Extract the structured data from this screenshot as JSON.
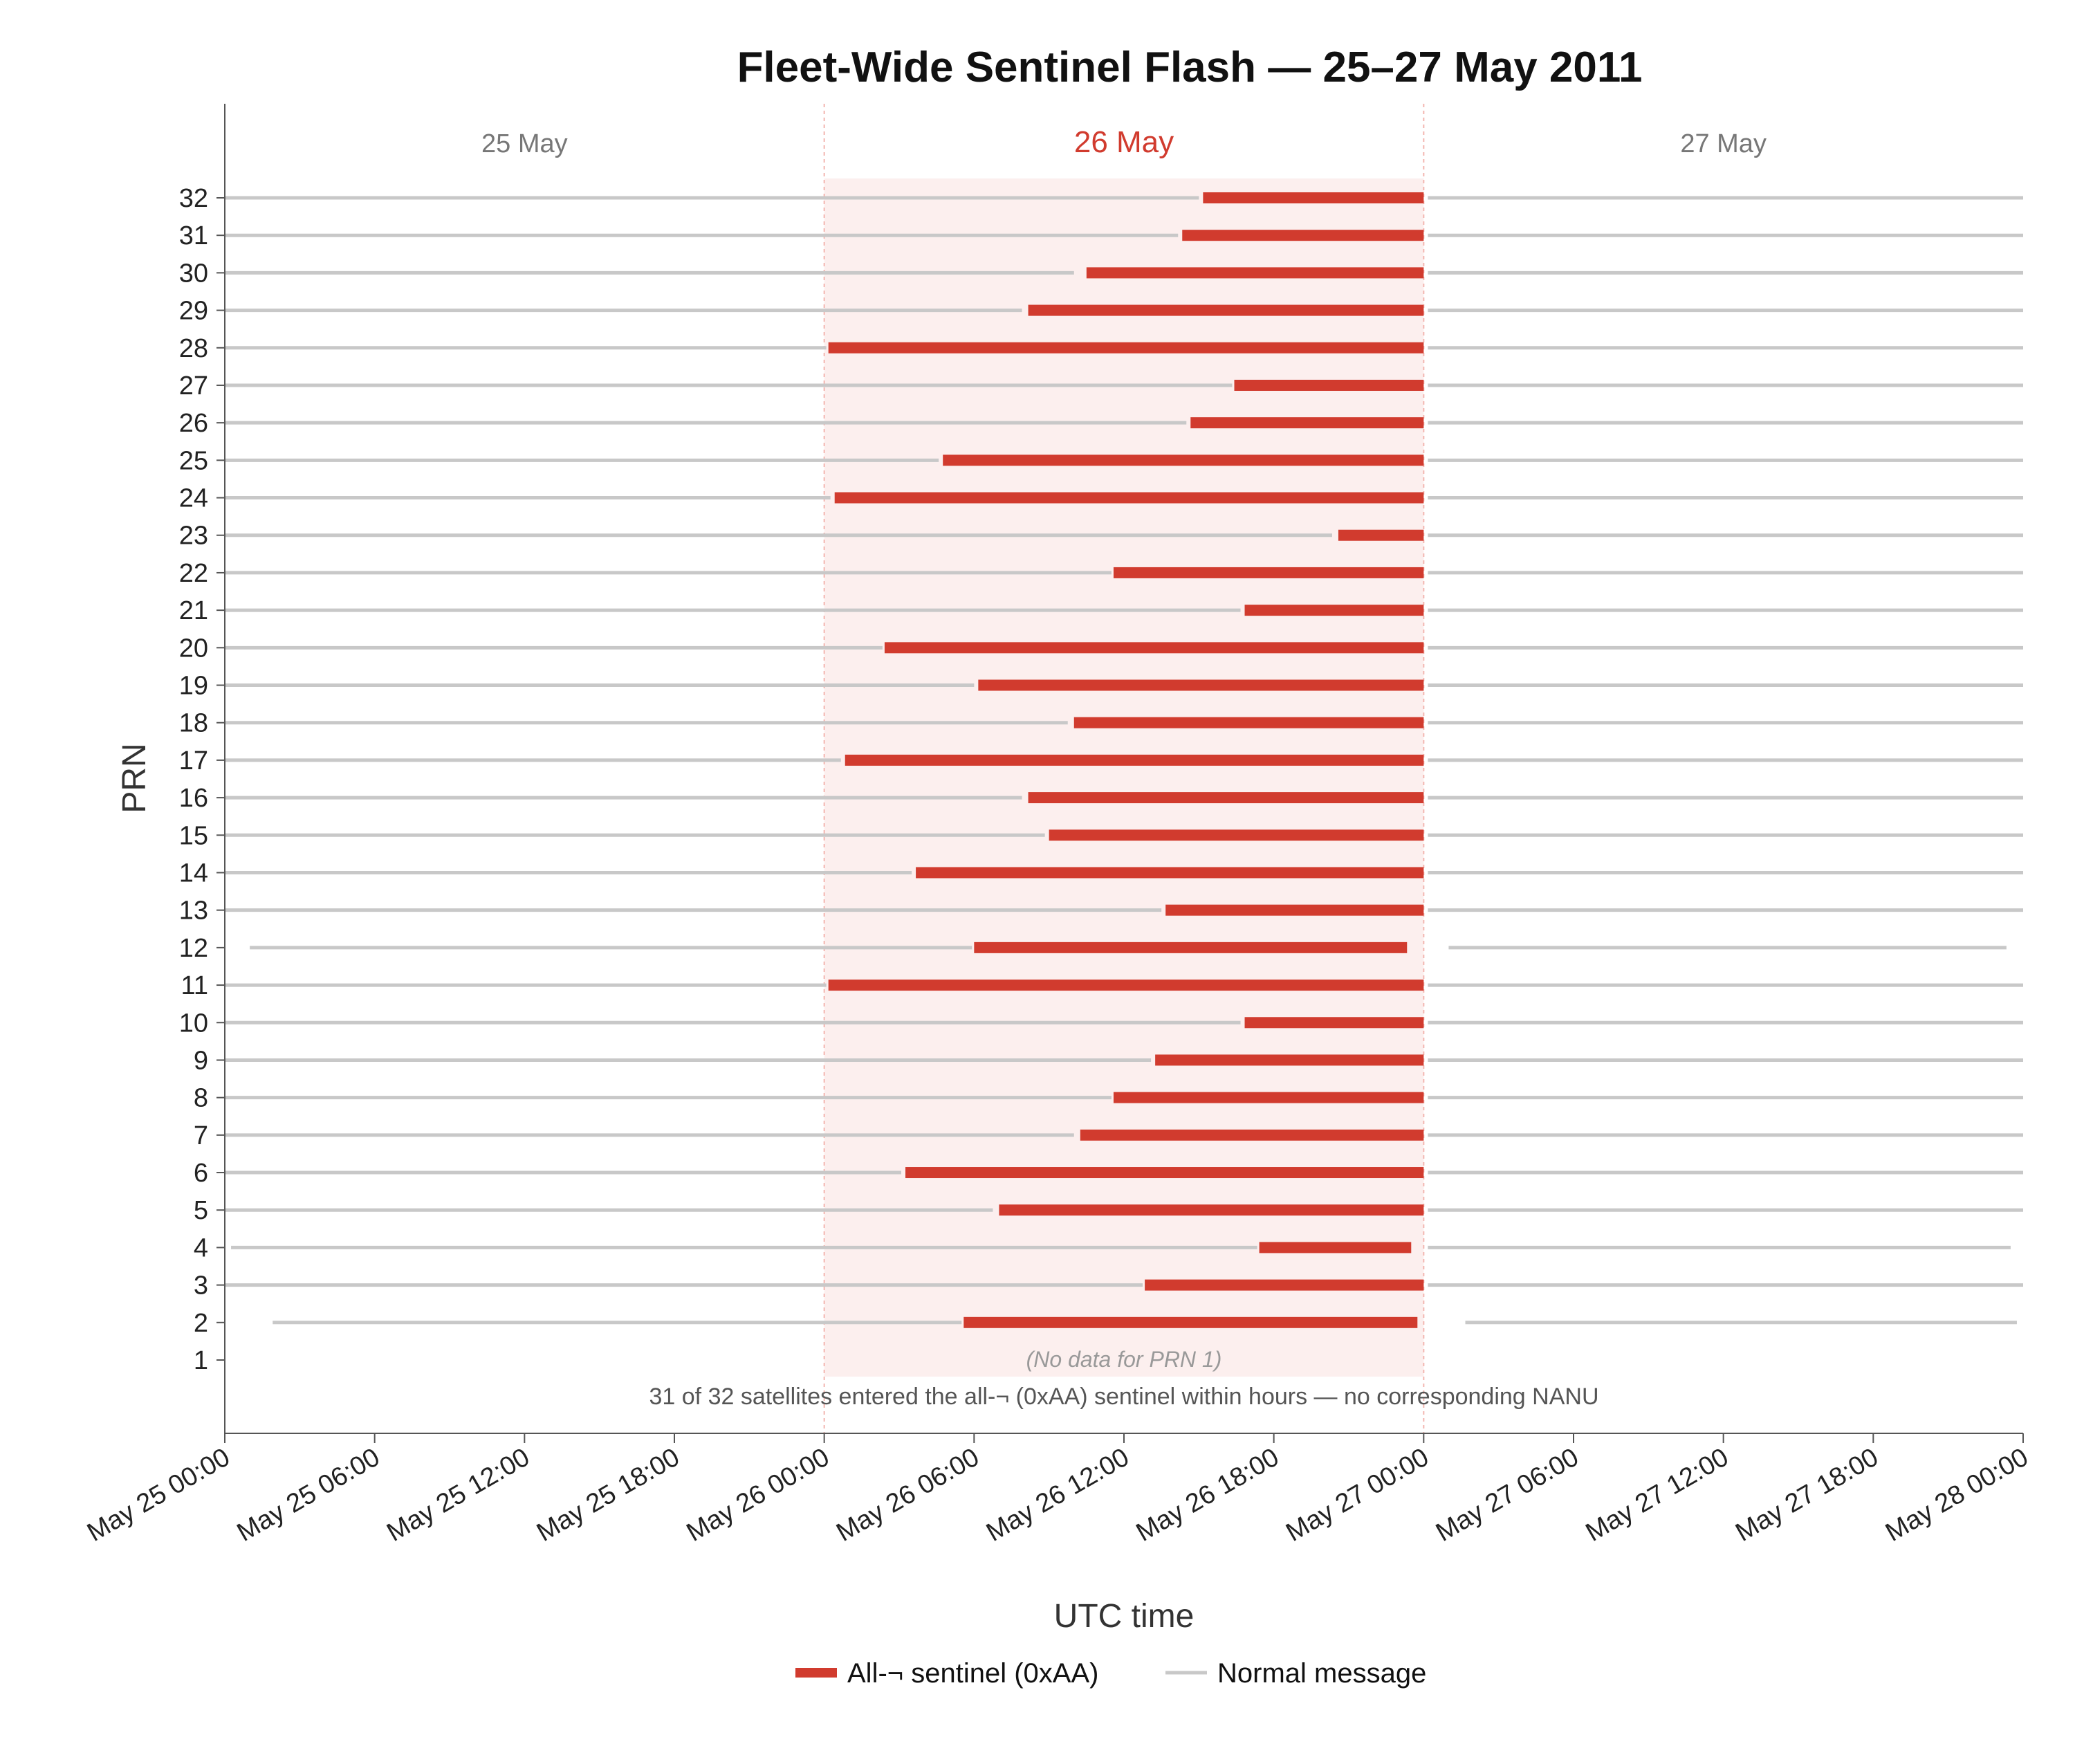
{
  "chart_data": {
    "type": "gantt",
    "title": "Fleet-Wide Sentinel Flash — 25–27 May 2011",
    "xlabel": "UTC time",
    "ylabel": "PRN",
    "x_range": [
      "2011-05-25 00:00",
      "2011-05-28 00:00"
    ],
    "y_range": [
      1,
      32
    ],
    "x_ticks": [
      "May 25 00:00",
      "May 25 06:00",
      "May 25 12:00",
      "May 25 18:00",
      "May 26 00:00",
      "May 26 06:00",
      "May 26 12:00",
      "May 26 18:00",
      "May 27 00:00",
      "May 27 06:00",
      "May 27 12:00",
      "May 27 18:00",
      "May 28 00:00"
    ],
    "y_ticks": [
      "1",
      "2",
      "3",
      "4",
      "5",
      "6",
      "7",
      "8",
      "9",
      "10",
      "11",
      "12",
      "13",
      "14",
      "15",
      "16",
      "17",
      "18",
      "19",
      "20",
      "21",
      "22",
      "23",
      "24",
      "25",
      "26",
      "27",
      "28",
      "29",
      "30",
      "31",
      "32"
    ],
    "day_labels": [
      "25 May",
      "26 May",
      "27 May"
    ],
    "highlight_span": {
      "start": "2011-05-26 00:00",
      "end": "2011-05-27 00:00"
    },
    "series": [
      {
        "name": "All-¬ sentinel (0xAA)",
        "color": "#d13b2e"
      },
      {
        "name": "Normal message",
        "color": "#c8c8c8"
      }
    ],
    "satellites": [
      {
        "prn": 2,
        "normal_before": [
          "2011-05-25 01:55",
          "2011-05-26 05:30"
        ],
        "sentinel": [
          "2011-05-26 05:35",
          "2011-05-26 23:45"
        ],
        "normal_after": [
          "2011-05-27 01:40",
          "2011-05-27 23:45"
        ]
      },
      {
        "prn": 3,
        "normal_before": [
          "2011-05-25 00:00",
          "2011-05-26 12:45"
        ],
        "sentinel": [
          "2011-05-26 12:50",
          "2011-05-27 00:00"
        ],
        "normal_after": [
          "2011-05-27 00:10",
          "2011-05-28 00:00"
        ]
      },
      {
        "prn": 4,
        "normal_before": [
          "2011-05-25 00:15",
          "2011-05-26 17:20"
        ],
        "sentinel": [
          "2011-05-26 17:25",
          "2011-05-26 23:30"
        ],
        "normal_after": [
          "2011-05-27 00:10",
          "2011-05-27 23:30"
        ]
      },
      {
        "prn": 5,
        "normal_before": [
          "2011-05-25 00:00",
          "2011-05-26 06:45"
        ],
        "sentinel": [
          "2011-05-26 07:00",
          "2011-05-27 00:00"
        ],
        "normal_after": [
          "2011-05-27 00:10",
          "2011-05-28 00:00"
        ]
      },
      {
        "prn": 6,
        "normal_before": [
          "2011-05-25 00:00",
          "2011-05-26 03:05"
        ],
        "sentinel": [
          "2011-05-26 03:15",
          "2011-05-27 00:00"
        ],
        "normal_after": [
          "2011-05-27 00:10",
          "2011-05-28 00:00"
        ]
      },
      {
        "prn": 7,
        "normal_before": [
          "2011-05-25 00:00",
          "2011-05-26 10:00"
        ],
        "sentinel": [
          "2011-05-26 10:15",
          "2011-05-27 00:00"
        ],
        "normal_after": [
          "2011-05-27 00:10",
          "2011-05-28 00:00"
        ]
      },
      {
        "prn": 8,
        "normal_before": [
          "2011-05-25 00:00",
          "2011-05-26 11:30"
        ],
        "sentinel": [
          "2011-05-26 11:35",
          "2011-05-27 00:00"
        ],
        "normal_after": [
          "2011-05-27 00:10",
          "2011-05-28 00:00"
        ]
      },
      {
        "prn": 9,
        "normal_before": [
          "2011-05-25 00:00",
          "2011-05-26 13:05"
        ],
        "sentinel": [
          "2011-05-26 13:15",
          "2011-05-27 00:00"
        ],
        "normal_after": [
          "2011-05-27 00:10",
          "2011-05-28 00:00"
        ]
      },
      {
        "prn": 10,
        "normal_before": [
          "2011-05-25 00:00",
          "2011-05-26 16:40"
        ],
        "sentinel": [
          "2011-05-26 16:50",
          "2011-05-27 00:00"
        ],
        "normal_after": [
          "2011-05-27 00:10",
          "2011-05-28 00:00"
        ]
      },
      {
        "prn": 11,
        "normal_before": [
          "2011-05-25 00:00",
          "2011-05-26 00:05"
        ],
        "sentinel": [
          "2011-05-26 00:10",
          "2011-05-27 00:00"
        ],
        "normal_after": [
          "2011-05-27 00:10",
          "2011-05-28 00:00"
        ]
      },
      {
        "prn": 12,
        "normal_before": [
          "2011-05-25 01:00",
          "2011-05-26 05:55"
        ],
        "sentinel": [
          "2011-05-26 06:00",
          "2011-05-26 23:20"
        ],
        "normal_after": [
          "2011-05-27 01:00",
          "2011-05-27 23:20"
        ]
      },
      {
        "prn": 13,
        "normal_before": [
          "2011-05-25 00:00",
          "2011-05-26 13:30"
        ],
        "sentinel": [
          "2011-05-26 13:40",
          "2011-05-27 00:00"
        ],
        "normal_after": [
          "2011-05-27 00:10",
          "2011-05-28 00:00"
        ]
      },
      {
        "prn": 14,
        "normal_before": [
          "2011-05-25 00:00",
          "2011-05-26 03:30"
        ],
        "sentinel": [
          "2011-05-26 03:40",
          "2011-05-27 00:00"
        ],
        "normal_after": [
          "2011-05-27 00:10",
          "2011-05-28 00:00"
        ]
      },
      {
        "prn": 15,
        "normal_before": [
          "2011-05-25 00:00",
          "2011-05-26 08:50"
        ],
        "sentinel": [
          "2011-05-26 09:00",
          "2011-05-27 00:00"
        ],
        "normal_after": [
          "2011-05-27 00:10",
          "2011-05-28 00:00"
        ]
      },
      {
        "prn": 16,
        "normal_before": [
          "2011-05-25 00:00",
          "2011-05-26 07:55"
        ],
        "sentinel": [
          "2011-05-26 08:10",
          "2011-05-27 00:00"
        ],
        "normal_after": [
          "2011-05-27 00:10",
          "2011-05-28 00:00"
        ]
      },
      {
        "prn": 17,
        "normal_before": [
          "2011-05-25 00:00",
          "2011-05-26 00:40"
        ],
        "sentinel": [
          "2011-05-26 00:50",
          "2011-05-27 00:00"
        ],
        "normal_after": [
          "2011-05-27 00:10",
          "2011-05-28 00:00"
        ]
      },
      {
        "prn": 18,
        "normal_before": [
          "2011-05-25 00:00",
          "2011-05-26 09:45"
        ],
        "sentinel": [
          "2011-05-26 10:00",
          "2011-05-27 00:00"
        ],
        "normal_after": [
          "2011-05-27 00:10",
          "2011-05-28 00:00"
        ]
      },
      {
        "prn": 19,
        "normal_before": [
          "2011-05-25 00:00",
          "2011-05-26 06:00"
        ],
        "sentinel": [
          "2011-05-26 06:10",
          "2011-05-27 00:00"
        ],
        "normal_after": [
          "2011-05-27 00:10",
          "2011-05-28 00:00"
        ]
      },
      {
        "prn": 20,
        "normal_before": [
          "2011-05-25 00:00",
          "2011-05-26 02:20"
        ],
        "sentinel": [
          "2011-05-26 02:25",
          "2011-05-27 00:00"
        ],
        "normal_after": [
          "2011-05-27 00:10",
          "2011-05-28 00:00"
        ]
      },
      {
        "prn": 21,
        "normal_before": [
          "2011-05-25 00:00",
          "2011-05-26 16:40"
        ],
        "sentinel": [
          "2011-05-26 16:50",
          "2011-05-27 00:00"
        ],
        "normal_after": [
          "2011-05-27 00:10",
          "2011-05-28 00:00"
        ]
      },
      {
        "prn": 22,
        "normal_before": [
          "2011-05-25 00:00",
          "2011-05-26 11:30"
        ],
        "sentinel": [
          "2011-05-26 11:35",
          "2011-05-27 00:00"
        ],
        "normal_after": [
          "2011-05-27 00:10",
          "2011-05-28 00:00"
        ]
      },
      {
        "prn": 23,
        "normal_before": [
          "2011-05-25 00:00",
          "2011-05-26 20:20"
        ],
        "sentinel": [
          "2011-05-26 20:35",
          "2011-05-27 00:00"
        ],
        "normal_after": [
          "2011-05-27 00:10",
          "2011-05-28 00:00"
        ]
      },
      {
        "prn": 24,
        "normal_before": [
          "2011-05-25 00:00",
          "2011-05-26 00:15"
        ],
        "sentinel": [
          "2011-05-26 00:25",
          "2011-05-27 00:00"
        ],
        "normal_after": [
          "2011-05-27 00:10",
          "2011-05-28 00:00"
        ]
      },
      {
        "prn": 25,
        "normal_before": [
          "2011-05-25 00:00",
          "2011-05-26 04:35"
        ],
        "sentinel": [
          "2011-05-26 04:45",
          "2011-05-27 00:00"
        ],
        "normal_after": [
          "2011-05-27 00:10",
          "2011-05-28 00:00"
        ]
      },
      {
        "prn": 26,
        "normal_before": [
          "2011-05-25 00:00",
          "2011-05-26 14:30"
        ],
        "sentinel": [
          "2011-05-26 14:40",
          "2011-05-27 00:00"
        ],
        "normal_after": [
          "2011-05-27 00:10",
          "2011-05-28 00:00"
        ]
      },
      {
        "prn": 27,
        "normal_before": [
          "2011-05-25 00:00",
          "2011-05-26 16:20"
        ],
        "sentinel": [
          "2011-05-26 16:25",
          "2011-05-27 00:00"
        ],
        "normal_after": [
          "2011-05-27 00:10",
          "2011-05-28 00:00"
        ]
      },
      {
        "prn": 28,
        "normal_before": [
          "2011-05-25 00:00",
          "2011-05-26 00:05"
        ],
        "sentinel": [
          "2011-05-26 00:10",
          "2011-05-27 00:00"
        ],
        "normal_after": [
          "2011-05-27 00:10",
          "2011-05-28 00:00"
        ]
      },
      {
        "prn": 29,
        "normal_before": [
          "2011-05-25 00:00",
          "2011-05-26 07:55"
        ],
        "sentinel": [
          "2011-05-26 08:10",
          "2011-05-27 00:00"
        ],
        "normal_after": [
          "2011-05-27 00:10",
          "2011-05-28 00:00"
        ]
      },
      {
        "prn": 30,
        "normal_before": [
          "2011-05-25 00:00",
          "2011-05-26 10:00"
        ],
        "sentinel": [
          "2011-05-26 10:30",
          "2011-05-27 00:00"
        ],
        "normal_after": [
          "2011-05-27 00:10",
          "2011-05-28 00:00"
        ]
      },
      {
        "prn": 31,
        "normal_before": [
          "2011-05-25 00:00",
          "2011-05-26 14:10"
        ],
        "sentinel": [
          "2011-05-26 14:20",
          "2011-05-27 00:00"
        ],
        "normal_after": [
          "2011-05-27 00:10",
          "2011-05-28 00:00"
        ]
      },
      {
        "prn": 32,
        "normal_before": [
          "2011-05-25 00:00",
          "2011-05-26 15:00"
        ],
        "sentinel": [
          "2011-05-26 15:10",
          "2011-05-27 00:00"
        ],
        "normal_after": [
          "2011-05-27 00:10",
          "2011-05-28 00:00"
        ]
      }
    ],
    "annotations": {
      "no_data": "(No data for PRN 1)",
      "summary": "31 of 32 satellites entered the all-¬ (0xAA) sentinel within hours — no corresponding NANU"
    },
    "grid": false,
    "legend_position": "bottom-center"
  }
}
